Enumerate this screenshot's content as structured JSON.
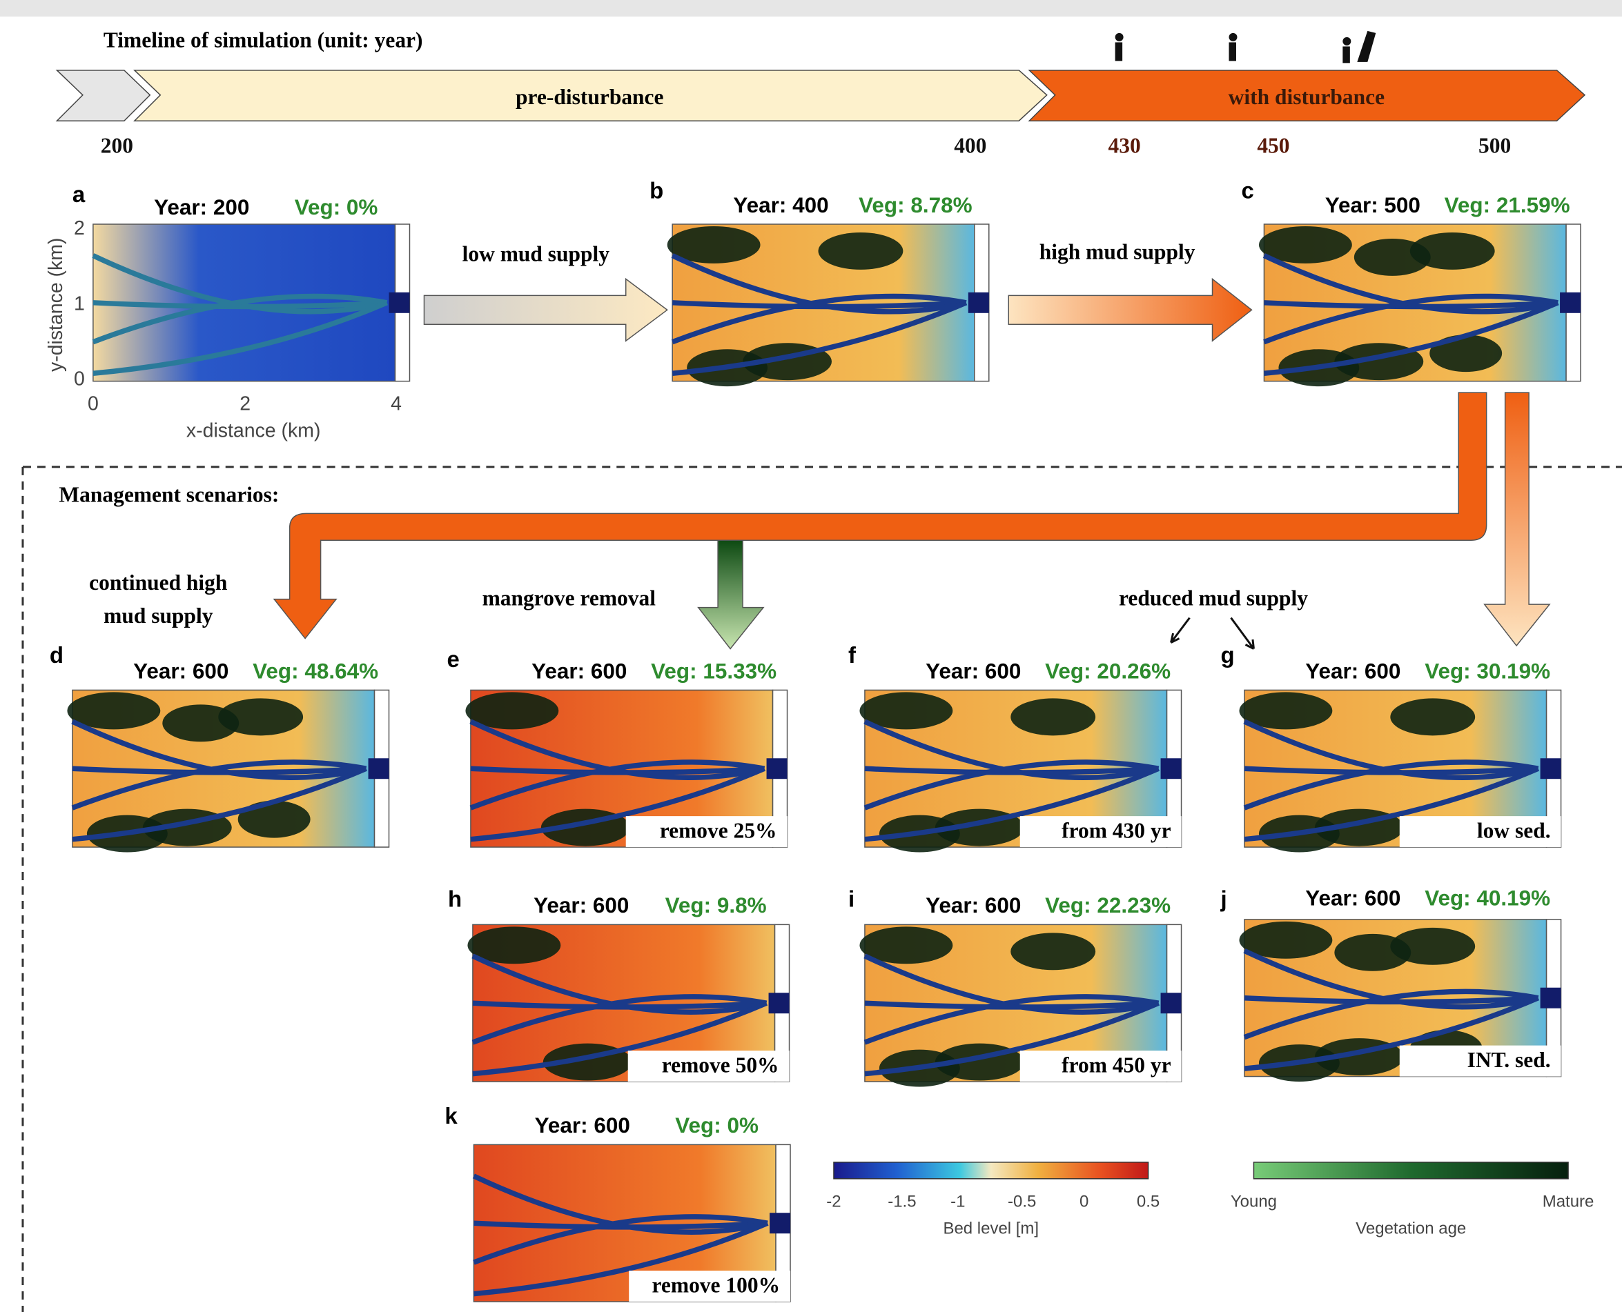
{
  "timeline": {
    "title": "Timeline of simulation (unit: year)",
    "phases": [
      "pre-disturbance",
      "with disturbance"
    ],
    "years": [
      "200",
      "400",
      "430",
      "450",
      "500"
    ]
  },
  "axes": {
    "y_label": "y-distance (km)",
    "x_label": "x-distance (km)",
    "yticks": [
      "0",
      "1",
      "2"
    ],
    "xticks": [
      "0",
      "2",
      "4"
    ]
  },
  "transitions": [
    "low mud supply",
    "high mud supply"
  ],
  "scenarios": {
    "title": "Management  scenarios:",
    "continued": [
      "continued high",
      "mud supply"
    ],
    "removal": "mangrove removal",
    "reduced": "reduced mud supply"
  },
  "panels": [
    {
      "letter": "a",
      "year": "Year: 200",
      "veg": "Veg: 0%"
    },
    {
      "letter": "b",
      "year": "Year: 400",
      "veg": "Veg: 8.78%"
    },
    {
      "letter": "c",
      "year": "Year: 500",
      "veg": "Veg: 21.59%"
    },
    {
      "letter": "d",
      "year": "Year: 600",
      "veg": "Veg: 48.64%"
    },
    {
      "letter": "e",
      "year": "Year: 600",
      "veg": "Veg: 15.33%",
      "note": "remove 25%"
    },
    {
      "letter": "f",
      "year": "Year: 600",
      "veg": "Veg: 20.26%",
      "note": "from 430 yr"
    },
    {
      "letter": "g",
      "year": "Year: 600",
      "veg": "Veg: 30.19%",
      "note": "low sed."
    },
    {
      "letter": "h",
      "year": "Year: 600",
      "veg": "Veg: 9.8%",
      "note": "remove 50%"
    },
    {
      "letter": "i",
      "year": "Year: 600",
      "veg": "Veg: 22.23%",
      "note": "from 450 yr"
    },
    {
      "letter": "j",
      "year": "Year: 600",
      "veg": "Veg: 40.19%",
      "note": "INT. sed."
    },
    {
      "letter": "k",
      "year": "Year: 600",
      "veg": "Veg: 0%",
      "note": "remove 100%"
    }
  ],
  "colorbars": [
    {
      "ticks": [
        "-2",
        "-1.5",
        "-1",
        "-0.5",
        "0",
        "0.5"
      ],
      "label": "Bed level [m]"
    },
    {
      "ticks": [
        "Young",
        "Mature"
      ],
      "label": "Vegetation age"
    }
  ]
}
